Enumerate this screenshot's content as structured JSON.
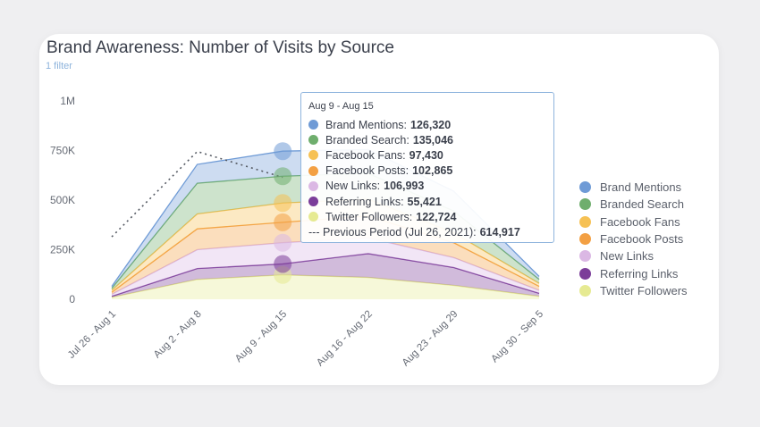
{
  "title": "Brand Awareness: Number of Visits by Source",
  "filter_label": "1 filter",
  "tooltip": {
    "header": "Aug 9 - Aug 15",
    "rows": [
      {
        "label": "Brand Mentions:",
        "value": "126,320",
        "color": "#6f9bd6"
      },
      {
        "label": "Branded Search:",
        "value": "135,046",
        "color": "#6fae6d"
      },
      {
        "label": "Facebook Fans:",
        "value": "97,430",
        "color": "#f6c154"
      },
      {
        "label": "Facebook Posts:",
        "value": "102,865",
        "color": "#f3a043"
      },
      {
        "label": "New Links:",
        "value": "106,993",
        "color": "#dbb8e4"
      },
      {
        "label": "Referring Links:",
        "value": "55,421",
        "color": "#7b3d99"
      },
      {
        "label": "Twitter Followers:",
        "value": "122,724",
        "color": "#e6ea92"
      }
    ],
    "previous": {
      "label": "--- Previous Period (Jul 26, 2021):",
      "value": "614,917"
    }
  },
  "chart_data": {
    "type": "area",
    "stacked": true,
    "categories": [
      "Jul 26 - Aug 1",
      "Aug 2 - Aug 8",
      "Aug 9 - Aug 15",
      "Aug 16 - Aug 22",
      "Aug 23 - Aug 29",
      "Aug 30 - Sep 5"
    ],
    "ylim": [
      0,
      1000000
    ],
    "yticks": [
      "0",
      "250K",
      "500K",
      "750K",
      "1M"
    ],
    "series": [
      {
        "name": "Twitter Followers",
        "color": "#e6ea92",
        "values": [
          10000,
          100000,
          122724,
          110000,
          70000,
          15000
        ]
      },
      {
        "name": "Referring Links",
        "color": "#7b3d99",
        "values": [
          5000,
          55000,
          55421,
          120000,
          90000,
          15000
        ]
      },
      {
        "name": "New Links",
        "color": "#dbb8e4",
        "values": [
          10000,
          95000,
          106993,
          80000,
          50000,
          15000
        ]
      },
      {
        "name": "Facebook Posts",
        "color": "#f3a043",
        "values": [
          10000,
          105000,
          102865,
          110000,
          75000,
          20000
        ]
      },
      {
        "name": "Facebook Fans",
        "color": "#f6c154",
        "values": [
          10000,
          75000,
          97430,
          85000,
          50000,
          15000
        ]
      },
      {
        "name": "Branded Search",
        "color": "#6fae6d",
        "values": [
          10000,
          155000,
          135046,
          130000,
          110000,
          20000
        ]
      },
      {
        "name": "Brand Mentions",
        "color": "#6f9bd6",
        "values": [
          10000,
          95000,
          126320,
          120000,
          100000,
          15000
        ]
      }
    ],
    "previous_period": {
      "values": [
        315000,
        745000,
        614917,
        null,
        null,
        null
      ]
    },
    "legend_position": "right",
    "grid": false
  }
}
